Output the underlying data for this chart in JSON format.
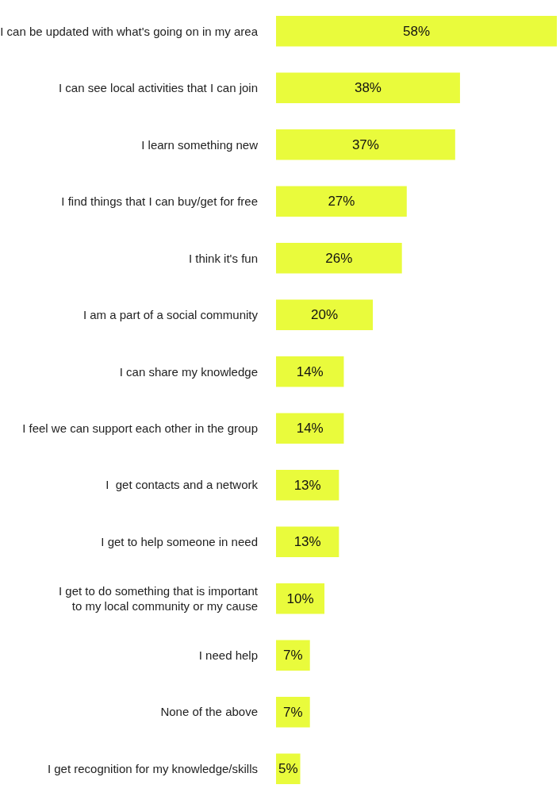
{
  "chart_data": {
    "type": "bar",
    "orientation": "horizontal",
    "color": "#e9fb3c",
    "categories": [
      "I can be updated with what's going on in my area",
      "I can see local activities that I can join",
      "I learn something new",
      "I find things that I can buy/get for free",
      "I think it's fun",
      "I am a part of a social community",
      "I can share my knowledge",
      "I feel we can support each other in the group",
      "I  get contacts and a network",
      "I get to help someone in need",
      "I get to do something that is important\nto my local community or my cause",
      "I need help",
      "None of the above",
      "I get recognition for my knowledge/skills"
    ],
    "values": [
      58,
      38,
      37,
      27,
      26,
      20,
      14,
      14,
      13,
      13,
      10,
      7,
      7,
      5
    ],
    "value_labels": [
      "58%",
      "38%",
      "37%",
      "27%",
      "26%",
      "20%",
      "14%",
      "14%",
      "13%",
      "13%",
      "10%",
      "7%",
      "7%",
      "5%"
    ],
    "legend": false,
    "tick_labels": "y"
  }
}
